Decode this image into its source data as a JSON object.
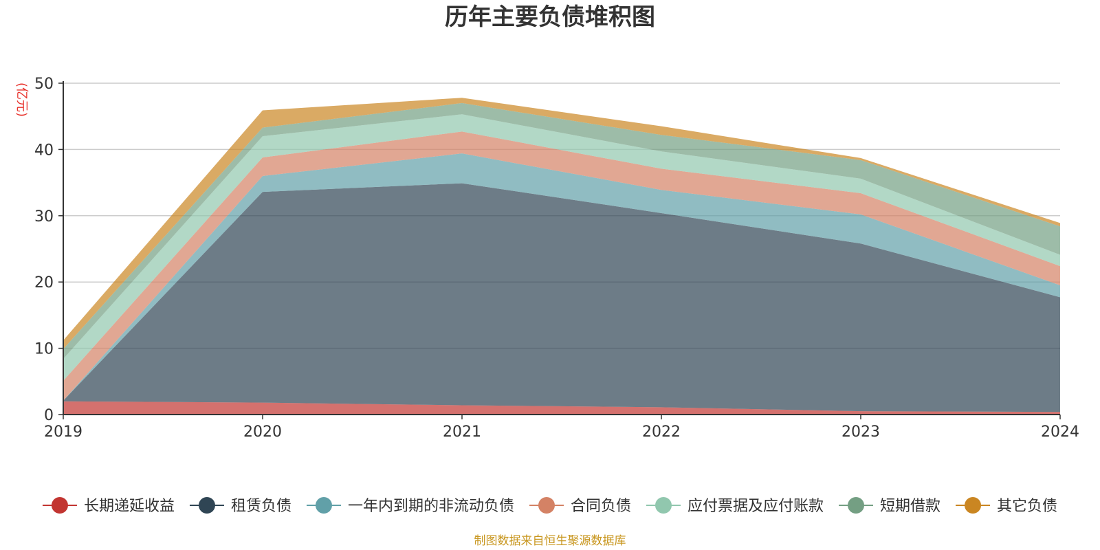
{
  "chart_data": {
    "type": "area",
    "stacked": true,
    "title": "历年主要负债堆积图",
    "unit_label": "(亿元)",
    "x": [
      "2019",
      "2020",
      "2021",
      "2022",
      "2023",
      "2024"
    ],
    "ylim": [
      0,
      50
    ],
    "yticks": [
      "0",
      "10",
      "20",
      "30",
      "40",
      "50"
    ],
    "grid": true,
    "legend_position": "bottom",
    "series": [
      {
        "name": "长期递延收益",
        "color": "#c23531",
        "values": [
          2.0,
          1.8,
          1.4,
          1.1,
          0.5,
          0.4
        ]
      },
      {
        "name": "租赁负债",
        "color": "#2f4554",
        "values": [
          0.1,
          31.8,
          33.5,
          29.3,
          25.3,
          17.3
        ]
      },
      {
        "name": "一年内到期的非流动负债",
        "color": "#61a0a8",
        "values": [
          0.0,
          2.4,
          4.5,
          3.5,
          4.4,
          1.8
        ]
      },
      {
        "name": "合同负债",
        "color": "#d48265",
        "values": [
          3.0,
          2.8,
          3.3,
          3.2,
          3.2,
          2.9
        ]
      },
      {
        "name": "应付票据及应付账款",
        "color": "#91c7ae",
        "values": [
          3.3,
          3.2,
          2.6,
          2.6,
          2.2,
          1.7
        ]
      },
      {
        "name": "短期借款",
        "color": "#749f83",
        "values": [
          1.5,
          1.3,
          1.7,
          2.5,
          2.8,
          4.3
        ]
      },
      {
        "name": "其它负债",
        "color": "#ca8622",
        "values": [
          1.3,
          2.6,
          0.8,
          1.3,
          0.3,
          0.5
        ]
      }
    ]
  },
  "footer": "制图数据来自恒生聚源数据库"
}
